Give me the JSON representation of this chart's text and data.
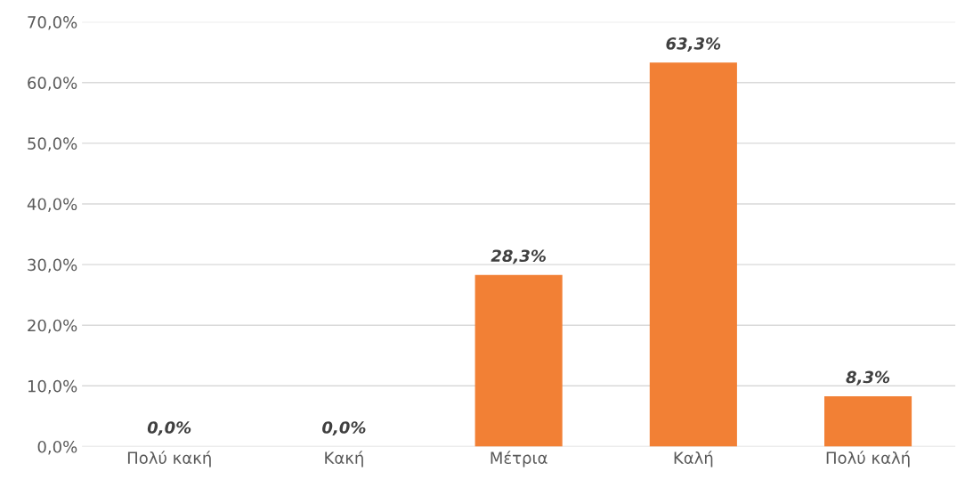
{
  "chart_data": {
    "type": "bar",
    "categories": [
      "Πολύ κακή",
      "Κακή",
      "Μέτρια",
      "Καλή",
      "Πολύ καλή"
    ],
    "values": [
      0,
      0,
      28.3,
      63.3,
      8.3
    ],
    "color": "#f28035",
    "value_labels": [
      "0,0%",
      "0,0%",
      "28,3%",
      "63,3%",
      "8,3%"
    ],
    "ylim": [
      0,
      70
    ],
    "yticks": [
      {
        "value": 0,
        "label": "0,0%"
      },
      {
        "value": 10,
        "label": "10,0%"
      },
      {
        "value": 20,
        "label": "20,0%"
      },
      {
        "value": 30,
        "label": "30,0%"
      },
      {
        "value": 40,
        "label": "40,0%"
      },
      {
        "value": 50,
        "label": "50,0%"
      },
      {
        "value": 60,
        "label": "60,0%"
      },
      {
        "value": 70,
        "label": "70,0%"
      }
    ],
    "grid": "y",
    "legend": false
  }
}
